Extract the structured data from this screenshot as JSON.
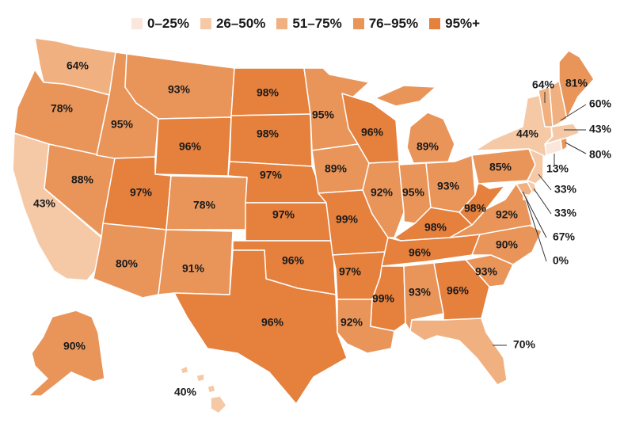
{
  "legend": [
    {
      "label": "0–25%",
      "color": "#fbe6db"
    },
    {
      "label": "26–50%",
      "color": "#f6c9a6"
    },
    {
      "label": "51–75%",
      "color": "#f0b07f"
    },
    {
      "label": "76–95%",
      "color": "#e9955a"
    },
    {
      "label": "95%+",
      "color": "#e5803d"
    }
  ],
  "states": {
    "WA": "64%",
    "OR": "78%",
    "CA": "43%",
    "NV": "88%",
    "ID": "95%",
    "MT": "93%",
    "WY": "96%",
    "UT": "97%",
    "AZ": "80%",
    "CO": "78%",
    "NM": "91%",
    "ND": "98%",
    "SD": "98%",
    "NE": "97%",
    "KS": "97%",
    "OK": "96%",
    "TX": "96%",
    "MN": "95%",
    "IA": "89%",
    "MO": "99%",
    "AR": "97%",
    "LA": "92%",
    "WI": "96%",
    "IL": "92%",
    "MI": "89%",
    "IN": "95%",
    "OH": "93%",
    "KY": "98%",
    "TN": "96%",
    "MS": "99%",
    "AL": "93%",
    "GA": "96%",
    "FL": "70%",
    "SC": "93%",
    "NC": "90%",
    "VA": "92%",
    "WV": "98%",
    "PA": "85%",
    "NY": "44%",
    "VT": "64%",
    "ME": "81%",
    "NH": "60%",
    "MA": "43%",
    "RI": "80%",
    "CT": "13%",
    "NJ": "33%",
    "DE": "33%",
    "MD": "67%",
    "DC": "0%",
    "AK": "90%",
    "HI": "40%"
  }
}
